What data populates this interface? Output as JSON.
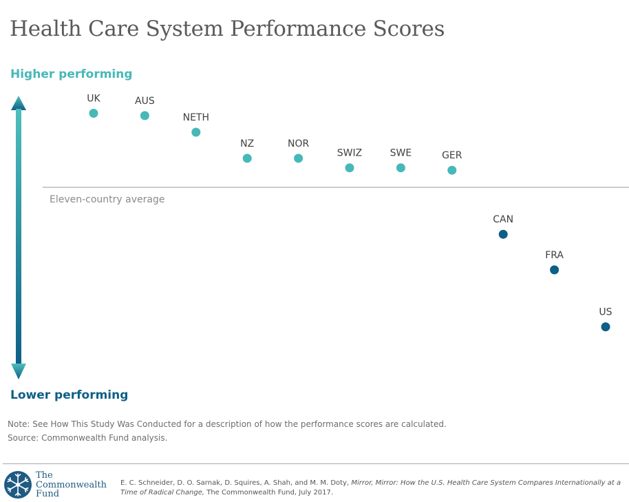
{
  "title": "Health Care System Performance Scores",
  "axis": {
    "top_label": "Higher performing",
    "bottom_label": "Lower performing",
    "top_color": "#47b8b8",
    "bottom_color": "#0d5f87"
  },
  "chart_data": {
    "type": "scatter",
    "title": "Health Care System Performance Scores",
    "ylabel_top": "Higher performing",
    "ylabel_bottom": "Lower performing",
    "grid": false,
    "points": [
      {
        "label": "UK",
        "rank": 1,
        "score": 0.3
      },
      {
        "label": "AUS",
        "rank": 2,
        "score": 0.29
      },
      {
        "label": "NETH",
        "rank": 3,
        "score": 0.22
      },
      {
        "label": "NZ",
        "rank": 4,
        "score": 0.11
      },
      {
        "label": "NOR",
        "rank": 5,
        "score": 0.11
      },
      {
        "label": "SWIZ",
        "rank": 6,
        "score": 0.07
      },
      {
        "label": "SWE",
        "rank": 7,
        "score": 0.07
      },
      {
        "label": "GER",
        "rank": 8,
        "score": 0.06
      },
      {
        "label": "CAN",
        "rank": 9,
        "score": -0.21
      },
      {
        "label": "FRA",
        "rank": 10,
        "score": -0.36
      },
      {
        "label": "US",
        "rank": 11,
        "score": -0.6
      }
    ],
    "reference_line": {
      "label": "Eleven-country average",
      "value": 0
    },
    "ylim": [
      -0.9,
      0.4
    ],
    "point_color_high": "#47b8b8",
    "point_color_low": "#0d5f87"
  },
  "notes": {
    "note": "Note: See How This Study Was Conducted for a description of how the performance scores are calculated.",
    "source": "Source: Commonwealth Fund analysis."
  },
  "footer": {
    "logo_line1": "The",
    "logo_line2": "Commonwealth",
    "logo_line3": "Fund",
    "citation_authors": "E. C. Schneider, D. O. Sarnak, D. Squires, A. Shah, and M. M. Doty, ",
    "citation_title": "Mirror, Mirror: How the U.S. Health Care System Compares Internationally at a Time of Radical Change,",
    "citation_publisher": " The Commonwealth Fund, July 2017."
  }
}
